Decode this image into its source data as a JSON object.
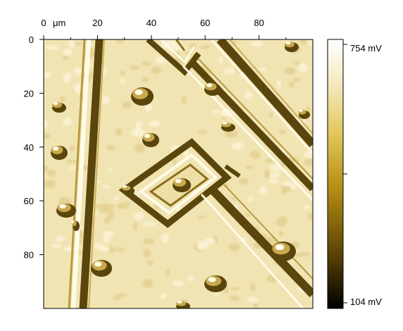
{
  "axes": {
    "unit": "μm",
    "x_ticks": [
      "0",
      "20",
      "40",
      "60",
      "80"
    ],
    "y_ticks": [
      "0",
      "20",
      "40",
      "60",
      "80"
    ],
    "x_tick_values": [
      0,
      20,
      40,
      60,
      80
    ],
    "y_tick_values": [
      0,
      20,
      40,
      60,
      80
    ],
    "range": [
      0,
      100
    ]
  },
  "colorbar": {
    "max_label": "754 mV",
    "min_label": "104 mV",
    "max_value": 754,
    "min_value": 104,
    "unit": "mV",
    "colors": [
      "#000000",
      "#5a4205",
      "#b58f14",
      "#e2c85a",
      "#f6ecc4",
      "#ffffff"
    ]
  },
  "image": {
    "background_color": "#f1e4b3",
    "feature_dark": "#5a450c",
    "feature_mid": "#9b7d22",
    "highlight": "#fffbe8"
  }
}
